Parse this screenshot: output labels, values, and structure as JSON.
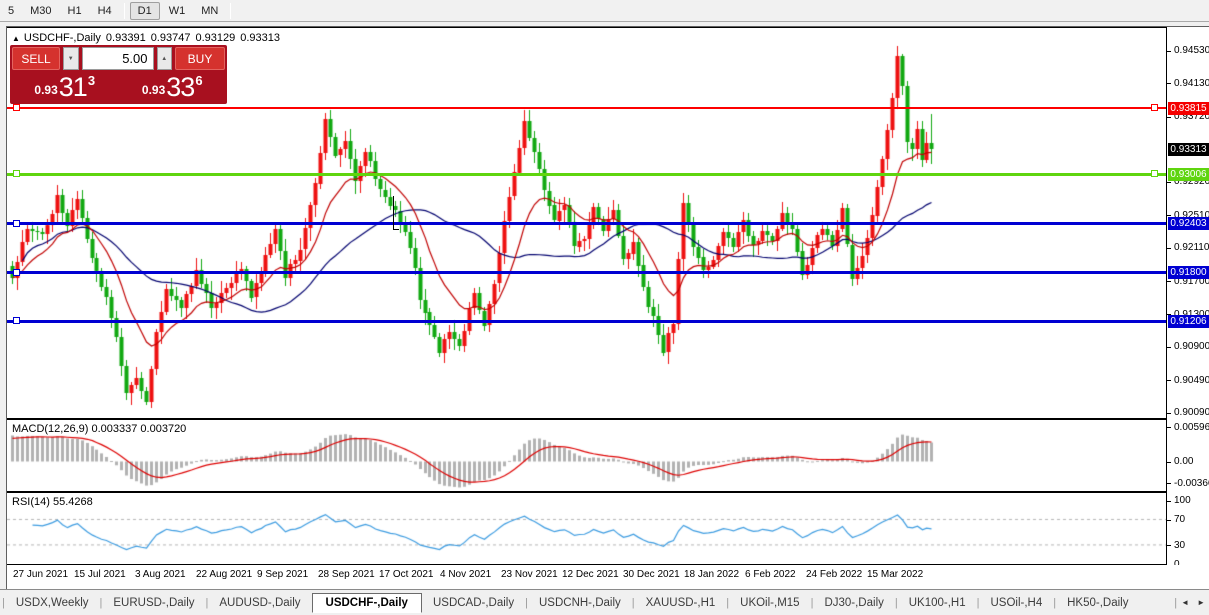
{
  "icons": {
    "collapse": "▲",
    "spin_down": "▼",
    "spin_up": "▲",
    "scroll_left": "◄",
    "scroll_right": "►"
  },
  "toolbar": {
    "active": "D1",
    "timeframes": [
      {
        "label": "5"
      },
      {
        "label": "M30"
      },
      {
        "label": "H1"
      },
      {
        "label": "H4"
      },
      {
        "sep": true
      },
      {
        "label": "D1"
      },
      {
        "label": "W1"
      },
      {
        "label": "MN"
      },
      {
        "sep": true
      }
    ]
  },
  "chart": {
    "header": {
      "symbol": "USDCHF-,Daily",
      "open": "0.93391",
      "high": "0.93747",
      "low": "0.93129",
      "close": "0.93313"
    },
    "trade_panel": {
      "sell_label": "SELL",
      "buy_label": "BUY",
      "volume": "5.00",
      "sell": {
        "prefix": "0.93",
        "big": "31",
        "sup": "3"
      },
      "buy": {
        "prefix": "0.93",
        "big": "33",
        "sup": "6"
      }
    }
  },
  "chart_data": {
    "type": "candlestick",
    "symbol": "USDCHF-",
    "timeframe": "Daily",
    "last_candle": {
      "open": 0.93391,
      "high": 0.93747,
      "low": 0.93129,
      "close": 0.93313
    },
    "price_scale": {
      "min": 0.9002,
      "max": 0.948,
      "ticks": [
        "0.94530",
        "0.94130",
        "0.93720",
        "0.92920",
        "0.92510",
        "0.92110",
        "0.91700",
        "0.91300",
        "0.90900",
        "0.90490",
        "0.90090"
      ]
    },
    "price_badges": [
      {
        "text": "0.93815",
        "value": 0.93815,
        "color": "#f50000"
      },
      {
        "text": "0.93313",
        "value": 0.93313,
        "color": "#000000"
      },
      {
        "text": "0.93006",
        "value": 0.93006,
        "color": "#5fd50e"
      },
      {
        "text": "0.92403",
        "value": 0.92403,
        "color": "#0000d2"
      },
      {
        "text": "0.91800",
        "value": 0.918,
        "color": "#0000d2"
      },
      {
        "text": "0.91206",
        "value": 0.91206,
        "color": "#0000d2"
      }
    ],
    "hlines": [
      {
        "value": 0.93815,
        "color": "#fe0000",
        "thickness": 2,
        "anchors": [
          "left",
          "right"
        ]
      },
      {
        "value": 0.93006,
        "color": "#5fd50e",
        "thickness": 3,
        "anchors": [
          "left",
          "right"
        ]
      },
      {
        "value": 0.92403,
        "color": "#0000d2",
        "thickness": 3,
        "anchors": [
          "left"
        ]
      },
      {
        "value": 0.918,
        "color": "#0000d2",
        "thickness": 3,
        "anchors": [
          "left"
        ]
      },
      {
        "value": 0.91206,
        "color": "#0000d2",
        "thickness": 3,
        "anchors": [
          "left"
        ]
      }
    ],
    "candle_count": 186,
    "up_color": "#ee1111",
    "down_color": "#12a812",
    "price_path": [
      [
        0,
        0.9175
      ],
      [
        3,
        0.9235
      ],
      [
        6,
        0.9225
      ],
      [
        9,
        0.9272
      ],
      [
        11,
        0.924
      ],
      [
        13,
        0.9268
      ],
      [
        16,
        0.9195
      ],
      [
        19,
        0.915
      ],
      [
        21,
        0.91
      ],
      [
        23,
        0.9032
      ],
      [
        25,
        0.905
      ],
      [
        27,
        0.9021
      ],
      [
        29,
        0.9105
      ],
      [
        31,
        0.916
      ],
      [
        34,
        0.9135
      ],
      [
        37,
        0.918
      ],
      [
        40,
        0.914
      ],
      [
        43,
        0.916
      ],
      [
        46,
        0.9185
      ],
      [
        48,
        0.915
      ],
      [
        51,
        0.92
      ],
      [
        53,
        0.923
      ],
      [
        55,
        0.9175
      ],
      [
        58,
        0.921
      ],
      [
        61,
        0.929
      ],
      [
        63,
        0.9368
      ],
      [
        65,
        0.932
      ],
      [
        67,
        0.934
      ],
      [
        69,
        0.929
      ],
      [
        71,
        0.933
      ],
      [
        74,
        0.928
      ],
      [
        77,
        0.9255
      ],
      [
        80,
        0.9215
      ],
      [
        82,
        0.915
      ],
      [
        84,
        0.912
      ],
      [
        86,
        0.9085
      ],
      [
        88,
        0.911
      ],
      [
        90,
        0.909
      ],
      [
        93,
        0.9155
      ],
      [
        95,
        0.912
      ],
      [
        97,
        0.9165
      ],
      [
        99,
        0.924
      ],
      [
        101,
        0.9305
      ],
      [
        103,
        0.9365
      ],
      [
        105,
        0.933
      ],
      [
        107,
        0.9282
      ],
      [
        109,
        0.924
      ],
      [
        111,
        0.9265
      ],
      [
        113,
        0.9215
      ],
      [
        115,
        0.9225
      ],
      [
        117,
        0.926
      ],
      [
        119,
        0.923
      ],
      [
        121,
        0.9255
      ],
      [
        123,
        0.9195
      ],
      [
        125,
        0.9215
      ],
      [
        127,
        0.916
      ],
      [
        129,
        0.9125
      ],
      [
        131,
        0.9085
      ],
      [
        133,
        0.912
      ],
      [
        135,
        0.9265
      ],
      [
        137,
        0.921
      ],
      [
        139,
        0.9185
      ],
      [
        141,
        0.9195
      ],
      [
        143,
        0.923
      ],
      [
        145,
        0.9215
      ],
      [
        147,
        0.924
      ],
      [
        149,
        0.9215
      ],
      [
        151,
        0.923
      ],
      [
        153,
        0.9215
      ],
      [
        155,
        0.9255
      ],
      [
        157,
        0.923
      ],
      [
        159,
        0.9175
      ],
      [
        161,
        0.921
      ],
      [
        163,
        0.9235
      ],
      [
        165,
        0.9215
      ],
      [
        167,
        0.9255
      ],
      [
        169,
        0.9175
      ],
      [
        171,
        0.92
      ],
      [
        173,
        0.925
      ],
      [
        175,
        0.932
      ],
      [
        177,
        0.9395
      ],
      [
        178,
        0.9448
      ],
      [
        179,
        0.9405
      ],
      [
        180,
        0.934
      ],
      [
        181,
        0.933
      ],
      [
        182,
        0.9355
      ],
      [
        183,
        0.932
      ],
      [
        184,
        0.9339
      ],
      [
        185,
        0.93313
      ]
    ],
    "moving_averages": [
      {
        "type": "ema",
        "period": 13,
        "color": "#c00000"
      },
      {
        "type": "sma",
        "period": 34,
        "color": "#00006e"
      }
    ],
    "x_axis": {
      "labels": [
        "27 Jun 2021",
        "15 Jul 2021",
        "3 Aug 2021",
        "22 Aug 2021",
        "9 Sep 2021",
        "28 Sep 2021",
        "17 Oct 2021",
        "4 Nov 2021",
        "23 Nov 2021",
        "12 Dec 2021",
        "30 Dec 2021",
        "18 Jan 2022",
        "6 Feb 2022",
        "24 Feb 2022",
        "15 Mar 2022"
      ]
    },
    "macd": {
      "title": "MACD(12,26,9)",
      "values": "0.003337 0.003720",
      "params": [
        12,
        26,
        9
      ],
      "scale": {
        "min": -0.0051,
        "max": 0.007
      },
      "ticks": [
        {
          "text": "0.005963",
          "value": 0.005963
        },
        {
          "text": "0.00",
          "value": 0.0
        },
        {
          "text": "-0.003664",
          "value": -0.003664
        }
      ],
      "hist_color": "#b2b2b2",
      "signal_color": "#dd0000"
    },
    "rsi": {
      "title": "RSI(14)",
      "value": "55.4268",
      "period": 14,
      "scale": {
        "min": 0,
        "max": 110
      },
      "ticks": [
        {
          "text": "100",
          "value": 100
        },
        {
          "text": "70",
          "value": 70
        },
        {
          "text": "30",
          "value": 30
        },
        {
          "text": "0",
          "value": 0
        }
      ],
      "levels": [
        70,
        30
      ],
      "color": "#3b9be0",
      "level_color": "#b5b5b5"
    }
  },
  "tabs": {
    "active": "USDCHF-,Daily",
    "items": [
      "USDX,Weekly",
      "EURUSD-,Daily",
      "AUDUSD-,Daily",
      "USDCHF-,Daily",
      "USDCAD-,Daily",
      "USDCNH-,Daily",
      "XAUUSD-,H1",
      "UKOil-,M15",
      "DJ30-,Daily",
      "UK100-,H1",
      "USOil-,H4",
      "HK50-,Daily"
    ]
  }
}
